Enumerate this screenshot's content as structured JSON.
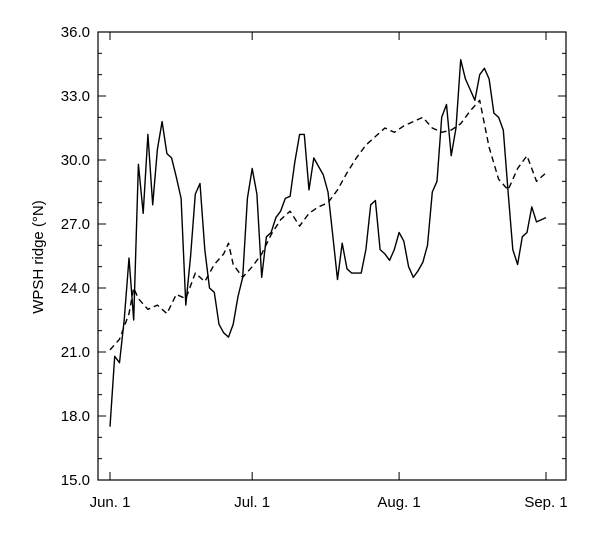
{
  "chart_data": {
    "type": "line",
    "title": "",
    "xlabel": "",
    "ylabel": "WPSH ridge (°N)",
    "xlim": [
      "2000-06-01",
      "2000-09-01"
    ],
    "ylim": [
      15.0,
      36.0
    ],
    "x_ticks": [
      {
        "date": "2000-06-01",
        "label": "Jun. 1"
      },
      {
        "date": "2000-07-01",
        "label": "Jul. 1"
      },
      {
        "date": "2000-08-01",
        "label": "Aug. 1"
      },
      {
        "date": "2000-09-01",
        "label": "Sep. 1"
      }
    ],
    "y_ticks": [
      15.0,
      18.0,
      21.0,
      24.0,
      27.0,
      30.0,
      33.0,
      36.0
    ],
    "y_tick_labels": [
      "15.0",
      "18.0",
      "21.0",
      "24.0",
      "27.0",
      "30.0",
      "33.0",
      "36.0"
    ],
    "grid": false,
    "series": [
      {
        "style": "solid",
        "x": [
          "2000-06-01",
          "2000-06-02",
          "2000-06-03",
          "2000-06-04",
          "2000-06-05",
          "2000-06-06",
          "2000-06-07",
          "2000-06-08",
          "2000-06-09",
          "2000-06-10",
          "2000-06-11",
          "2000-06-12",
          "2000-06-13",
          "2000-06-14",
          "2000-06-15",
          "2000-06-16",
          "2000-06-17",
          "2000-06-18",
          "2000-06-19",
          "2000-06-20",
          "2000-06-21",
          "2000-06-22",
          "2000-06-23",
          "2000-06-24",
          "2000-06-25",
          "2000-06-26",
          "2000-06-27",
          "2000-06-28",
          "2000-06-29",
          "2000-06-30",
          "2000-07-01",
          "2000-07-02",
          "2000-07-03",
          "2000-07-04",
          "2000-07-05",
          "2000-07-06",
          "2000-07-07",
          "2000-07-08",
          "2000-07-09",
          "2000-07-10",
          "2000-07-11",
          "2000-07-12",
          "2000-07-13",
          "2000-07-14",
          "2000-07-15",
          "2000-07-16",
          "2000-07-17",
          "2000-07-18",
          "2000-07-19",
          "2000-07-20",
          "2000-07-21",
          "2000-07-22",
          "2000-07-23",
          "2000-07-24",
          "2000-07-25",
          "2000-07-26",
          "2000-07-27",
          "2000-07-28",
          "2000-07-29",
          "2000-07-30",
          "2000-07-31",
          "2000-08-01",
          "2000-08-02",
          "2000-08-03",
          "2000-08-04",
          "2000-08-05",
          "2000-08-06",
          "2000-08-07",
          "2000-08-08",
          "2000-08-09",
          "2000-08-10",
          "2000-08-11",
          "2000-08-12",
          "2000-08-13",
          "2000-08-14",
          "2000-08-15",
          "2000-08-16",
          "2000-08-17",
          "2000-08-18",
          "2000-08-19",
          "2000-08-20",
          "2000-08-21",
          "2000-08-22",
          "2000-08-23",
          "2000-08-24",
          "2000-08-25",
          "2000-08-26",
          "2000-08-27",
          "2000-08-28",
          "2000-08-29",
          "2000-08-30",
          "2000-08-31",
          "2000-09-01"
        ],
        "y": [
          17.5,
          20.8,
          20.5,
          22.5,
          25.4,
          22.5,
          29.8,
          27.5,
          31.2,
          27.9,
          30.5,
          31.8,
          30.3,
          30.1,
          29.2,
          28.2,
          23.2,
          25.5,
          28.4,
          28.9,
          25.8,
          24.0,
          23.8,
          22.3,
          21.9,
          21.7,
          22.3,
          23.6,
          24.5,
          28.2,
          29.6,
          28.4,
          24.5,
          26.4,
          26.6,
          27.3,
          27.6,
          28.2,
          28.3,
          29.9,
          31.2,
          31.2,
          28.6,
          30.1,
          29.7,
          29.3,
          28.5,
          26.5,
          24.4,
          26.1,
          24.9,
          24.7,
          24.7,
          24.7,
          25.8,
          27.9,
          28.1,
          25.8,
          25.6,
          25.3,
          25.8,
          26.6,
          26.2,
          25.0,
          24.5,
          24.8,
          25.2,
          26.0,
          28.5,
          29.0,
          32.0,
          32.6,
          30.2,
          31.5,
          34.7,
          33.8,
          33.3,
          32.8,
          34.0,
          34.3,
          33.8,
          32.2,
          32.0,
          31.4,
          28.5,
          25.8,
          25.1,
          26.4,
          26.6,
          27.8,
          27.1,
          27.2,
          27.3
        ]
      },
      {
        "style": "dashed",
        "x": [
          "2000-06-01",
          "2000-06-03",
          "2000-06-05",
          "2000-06-06",
          "2000-06-07",
          "2000-06-09",
          "2000-06-11",
          "2000-06-12",
          "2000-06-13",
          "2000-06-15",
          "2000-06-17",
          "2000-06-19",
          "2000-06-21",
          "2000-06-23",
          "2000-06-25",
          "2000-06-26",
          "2000-06-27",
          "2000-06-29",
          "2000-07-01",
          "2000-07-03",
          "2000-07-05",
          "2000-07-07",
          "2000-07-09",
          "2000-07-11",
          "2000-07-13",
          "2000-07-15",
          "2000-07-17",
          "2000-07-19",
          "2000-07-21",
          "2000-07-23",
          "2000-07-25",
          "2000-07-27",
          "2000-07-29",
          "2000-07-31",
          "2000-08-02",
          "2000-08-04",
          "2000-08-06",
          "2000-08-08",
          "2000-08-10",
          "2000-08-12",
          "2000-08-14",
          "2000-08-16",
          "2000-08-18",
          "2000-08-20",
          "2000-08-22",
          "2000-08-24",
          "2000-08-26",
          "2000-08-28",
          "2000-08-30",
          "2000-09-01"
        ],
        "y": [
          21.1,
          21.6,
          22.8,
          24.0,
          23.5,
          23.0,
          23.2,
          23.0,
          22.8,
          23.7,
          23.5,
          24.7,
          24.3,
          25.1,
          25.6,
          26.1,
          25.1,
          24.5,
          25.0,
          25.6,
          26.5,
          27.2,
          27.6,
          26.9,
          27.5,
          27.8,
          28.0,
          28.6,
          29.4,
          30.1,
          30.7,
          31.1,
          31.5,
          31.3,
          31.6,
          31.8,
          32.0,
          31.5,
          31.3,
          31.4,
          31.7,
          32.3,
          32.8,
          30.6,
          29.1,
          28.6,
          29.6,
          30.2,
          29.0,
          29.4
        ]
      }
    ]
  }
}
